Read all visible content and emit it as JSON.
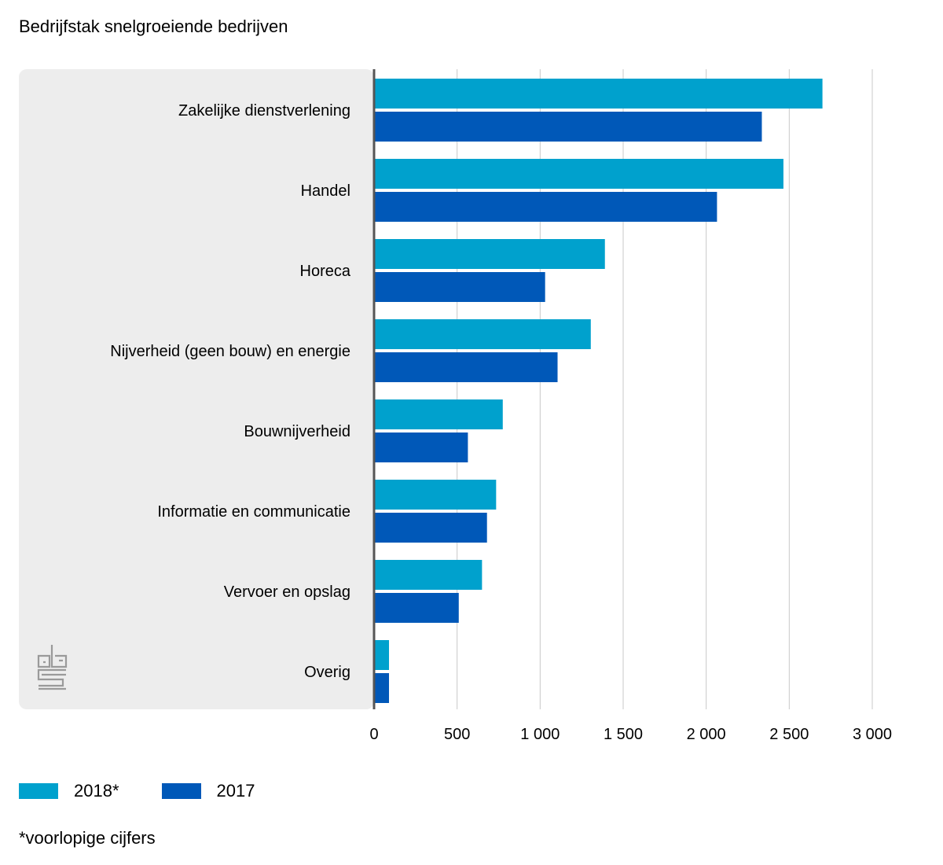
{
  "chart_data": {
    "type": "bar",
    "orientation": "horizontal",
    "title": "Bedrijfstak snelgroeiende bedrijven",
    "categories": [
      "Zakelijke dienstverlening",
      "Handel",
      "Horeca",
      "Nijverheid (geen bouw) en energie",
      "Bouwnijverheid",
      "Informatie en communicatie",
      "Vervoer en opslag",
      "Overig"
    ],
    "series": [
      {
        "name": "2018*",
        "color": "#00a1cd",
        "values": [
          2700,
          2465,
          1390,
          1305,
          775,
          735,
          650,
          90
        ]
      },
      {
        "name": "2017",
        "color": "#0058b8",
        "values": [
          2335,
          2065,
          1030,
          1105,
          565,
          680,
          510,
          90
        ]
      }
    ],
    "xlim": [
      0,
      3000
    ],
    "xticks": [
      0,
      500,
      1000,
      1500,
      2000,
      2500,
      3000
    ],
    "xtick_labels": [
      "0",
      "500",
      "1 000",
      "1 500",
      "2 000",
      "2 500",
      "3 000"
    ],
    "grid": true,
    "legend_position": "bottom-left",
    "footnote": "*voorlopige cijfers"
  },
  "colors": {
    "label_panel": "#ededed",
    "grid": "#c8c8c8",
    "axis": "#555555",
    "logo": "#9a9a9a"
  },
  "logo_icon": "cbs-logo-icon"
}
